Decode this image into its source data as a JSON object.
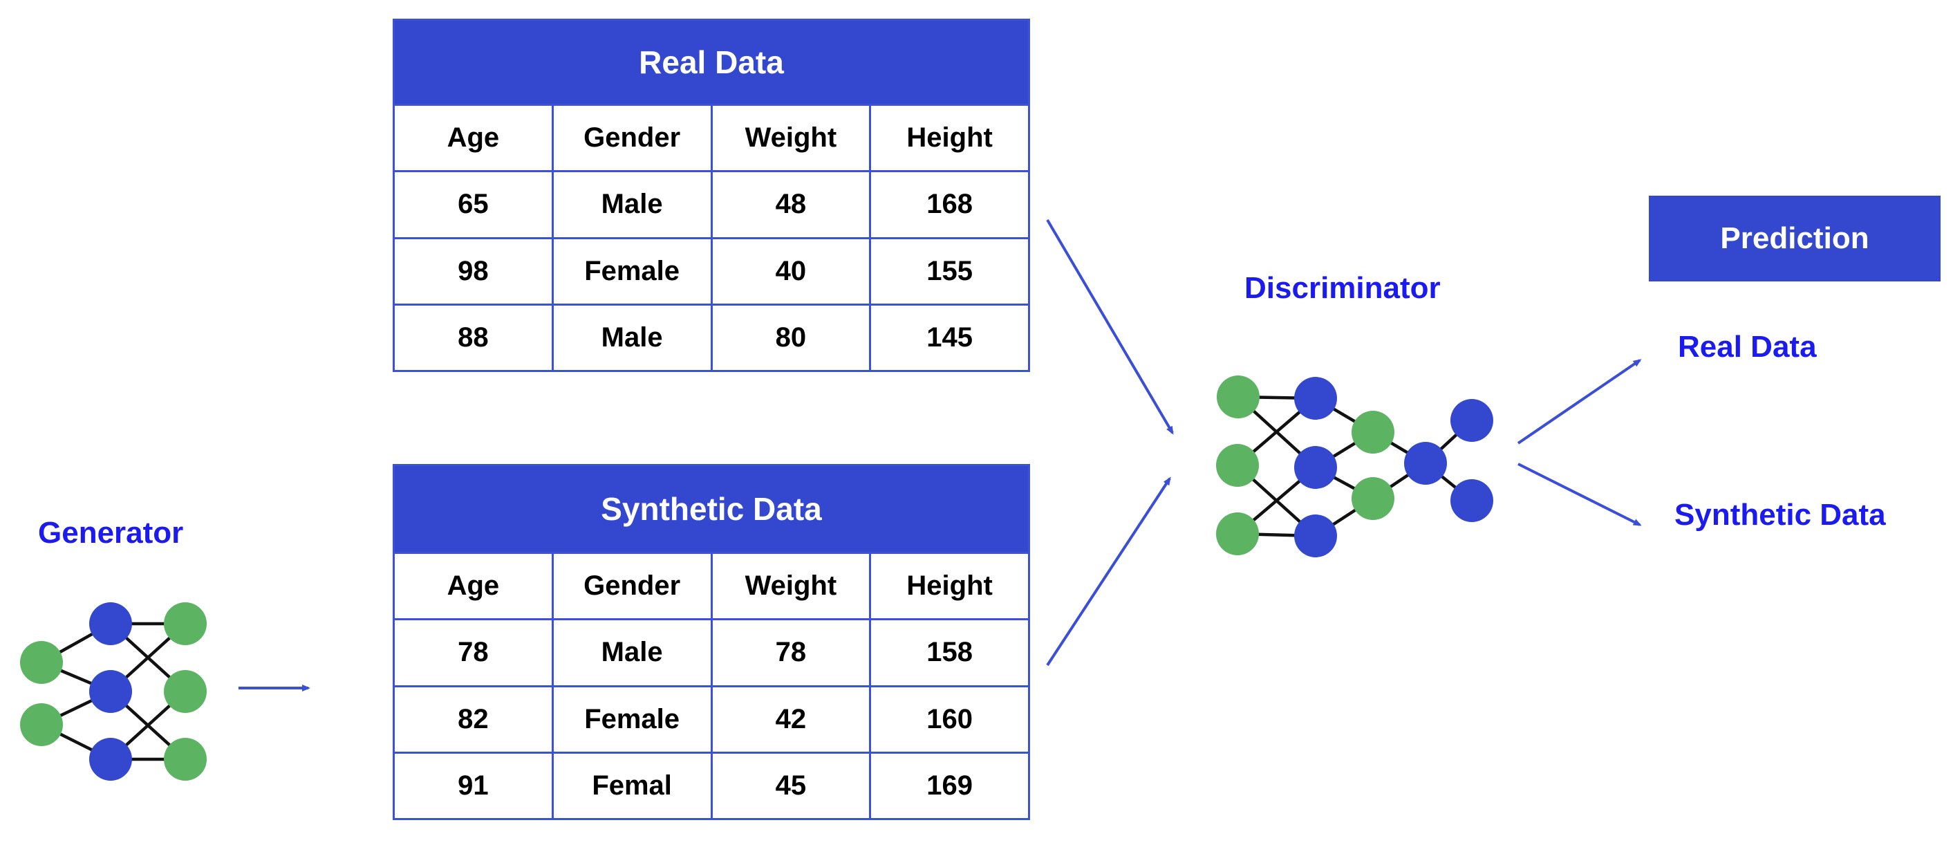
{
  "colors": {
    "node_blue": "#3348cf",
    "green": "#5cb463",
    "label_blue": "#1b1bef",
    "arrow_blue": "#3b4ed8",
    "border_blue": "#3b52d8",
    "header_text": "#ffffff",
    "cell_text": "#000000",
    "background": "#ffffff"
  },
  "real_table": {
    "title": "Real Data",
    "columns": [
      "Age",
      "Gender",
      "Weight",
      "Height"
    ],
    "rows": [
      [
        "65",
        "Male",
        "48",
        "168"
      ],
      [
        "98",
        "Female",
        "40",
        "155"
      ],
      [
        "88",
        "Male",
        "80",
        "145"
      ]
    ]
  },
  "synthetic_table": {
    "title": "Synthetic Data",
    "columns": [
      "Age",
      "Gender",
      "Weight",
      "Height"
    ],
    "rows": [
      [
        "78",
        "Male",
        "78",
        "158"
      ],
      [
        "82",
        "Female",
        "42",
        "160"
      ],
      [
        "91",
        "Femal",
        "45",
        "169"
      ]
    ]
  },
  "labels": {
    "generator": "Generator",
    "discriminator": "Discriminator",
    "prediction": "Prediction",
    "output_real": "Real Data",
    "output_synthetic": "Synthetic Data"
  },
  "icons": {
    "generator_network": "neural-network-icon",
    "discriminator_network": "neural-network-icon",
    "arrows": "arrow-icon"
  }
}
